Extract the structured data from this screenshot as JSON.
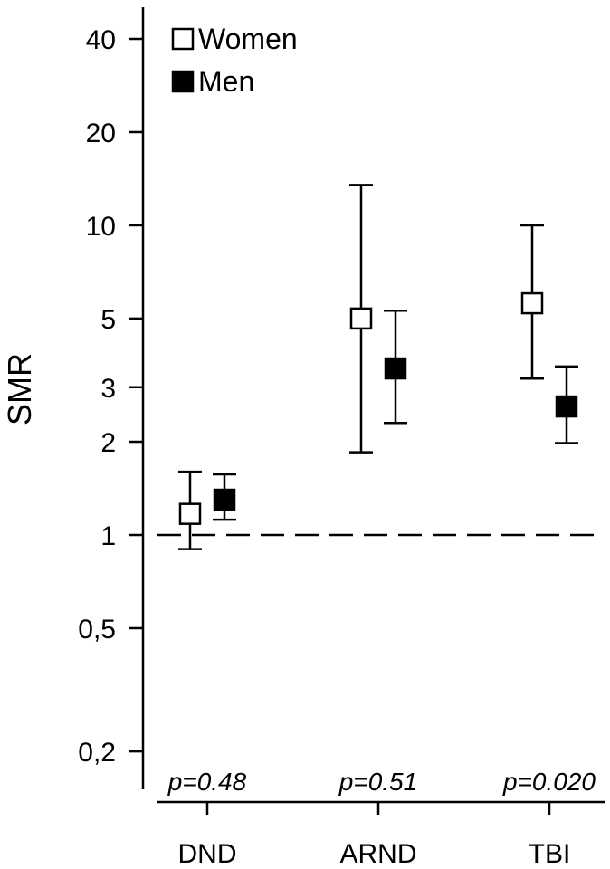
{
  "chart_data": {
    "type": "scatter",
    "title": "",
    "xlabel": "",
    "ylabel": "SMR",
    "yscale": "log",
    "ylim": [
      0.16,
      50
    ],
    "yticks": [
      {
        "value": 40,
        "label": "40"
      },
      {
        "value": 20,
        "label": "20"
      },
      {
        "value": 10,
        "label": "10"
      },
      {
        "value": 5,
        "label": "5"
      },
      {
        "value": 3,
        "label": "3"
      },
      {
        "value": 2,
        "label": "2"
      },
      {
        "value": 1,
        "label": "1"
      },
      {
        "value": 0.5,
        "label": "0,5"
      },
      {
        "value": 0.2,
        "label": "0,2"
      }
    ],
    "categories": [
      "DND",
      "ARND",
      "TBI"
    ],
    "p_values": [
      "p=0.48",
      "p=0.51",
      "p=0.020"
    ],
    "reference_line": 1,
    "legend_position": "top-left",
    "series": [
      {
        "name": "Women",
        "marker": "open-square",
        "color": "#ffffff",
        "points": [
          {
            "category": "DND",
            "value": 1.17,
            "ci": [
              0.9,
              1.6
            ]
          },
          {
            "category": "ARND",
            "value": 5.0,
            "ci": [
              1.85,
              13.5
            ]
          },
          {
            "category": "TBI",
            "value": 5.6,
            "ci": [
              3.2,
              10.0
            ]
          }
        ]
      },
      {
        "name": "Men",
        "marker": "filled-square",
        "color": "#000000",
        "points": [
          {
            "category": "DND",
            "value": 1.3,
            "ci": [
              1.12,
              1.57
            ]
          },
          {
            "category": "ARND",
            "value": 3.45,
            "ci": [
              2.3,
              5.3
            ]
          },
          {
            "category": "TBI",
            "value": 2.6,
            "ci": [
              1.98,
              3.5
            ]
          }
        ]
      }
    ]
  }
}
